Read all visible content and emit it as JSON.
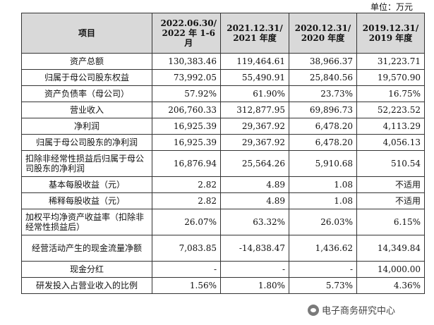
{
  "unit_label": "单位：万元",
  "header": {
    "item": "项目",
    "periods": [
      "2022.06.30/\n2022 年 1-6\n月",
      "2021.12.31/\n2021 年度",
      "2020.12.31/\n2020 年度",
      "2019.12.31/\n2019 年度"
    ]
  },
  "rows": [
    {
      "label": "资产总额",
      "values": [
        "130,383.46",
        "119,464.61",
        "38,966.37",
        "31,223.71"
      ]
    },
    {
      "label": "归属于母公司股东权益",
      "values": [
        "73,992.05",
        "55,490.91",
        "25,840.56",
        "19,570.90"
      ]
    },
    {
      "label": "资产负债率（母公司）",
      "values": [
        "57.92%",
        "61.90%",
        "23.73%",
        "16.75%"
      ]
    },
    {
      "label": "营业收入",
      "values": [
        "206,760.33",
        "312,877.95",
        "69,896.73",
        "52,223.52"
      ]
    },
    {
      "label": "净利润",
      "values": [
        "16,925.39",
        "29,367.92",
        "6,478.20",
        "4,113.29"
      ]
    },
    {
      "label": "归属于母公司股东的净利润",
      "values": [
        "16,925.39",
        "29,367.92",
        "6,478.20",
        "4,056.13"
      ]
    },
    {
      "label": "扣除非经常性损益后归属于母公司股东的净利润",
      "values": [
        "16,876.94",
        "25,564.26",
        "5,910.68",
        "510.54"
      ]
    },
    {
      "label": "基本每股收益（元）",
      "values": [
        "2.82",
        "4.89",
        "1.08",
        "不适用"
      ]
    },
    {
      "label": "稀释每股收益（元）",
      "values": [
        "2.82",
        "4.89",
        "1.08",
        "不适用"
      ]
    },
    {
      "label": "加权平均净资产收益率（扣除非经常性损益后）",
      "values": [
        "26.07%",
        "63.32%",
        "26.03%",
        "6.15%"
      ]
    },
    {
      "label": "经营活动产生的现金流量净额",
      "values": [
        "7,083.85",
        "-14,838.47",
        "1,436.62",
        "14,349.84"
      ]
    },
    {
      "label": "现金分红",
      "values": [
        "-",
        "-",
        "-",
        "14,000.00"
      ]
    },
    {
      "label": "研发投入占营业收入的比例",
      "values": [
        "1.56%",
        "1.80%",
        "5.73%",
        "4.36%"
      ]
    }
  ],
  "watermark": {
    "text": "电子商务研究中心",
    "icon": "wechat-icon"
  }
}
